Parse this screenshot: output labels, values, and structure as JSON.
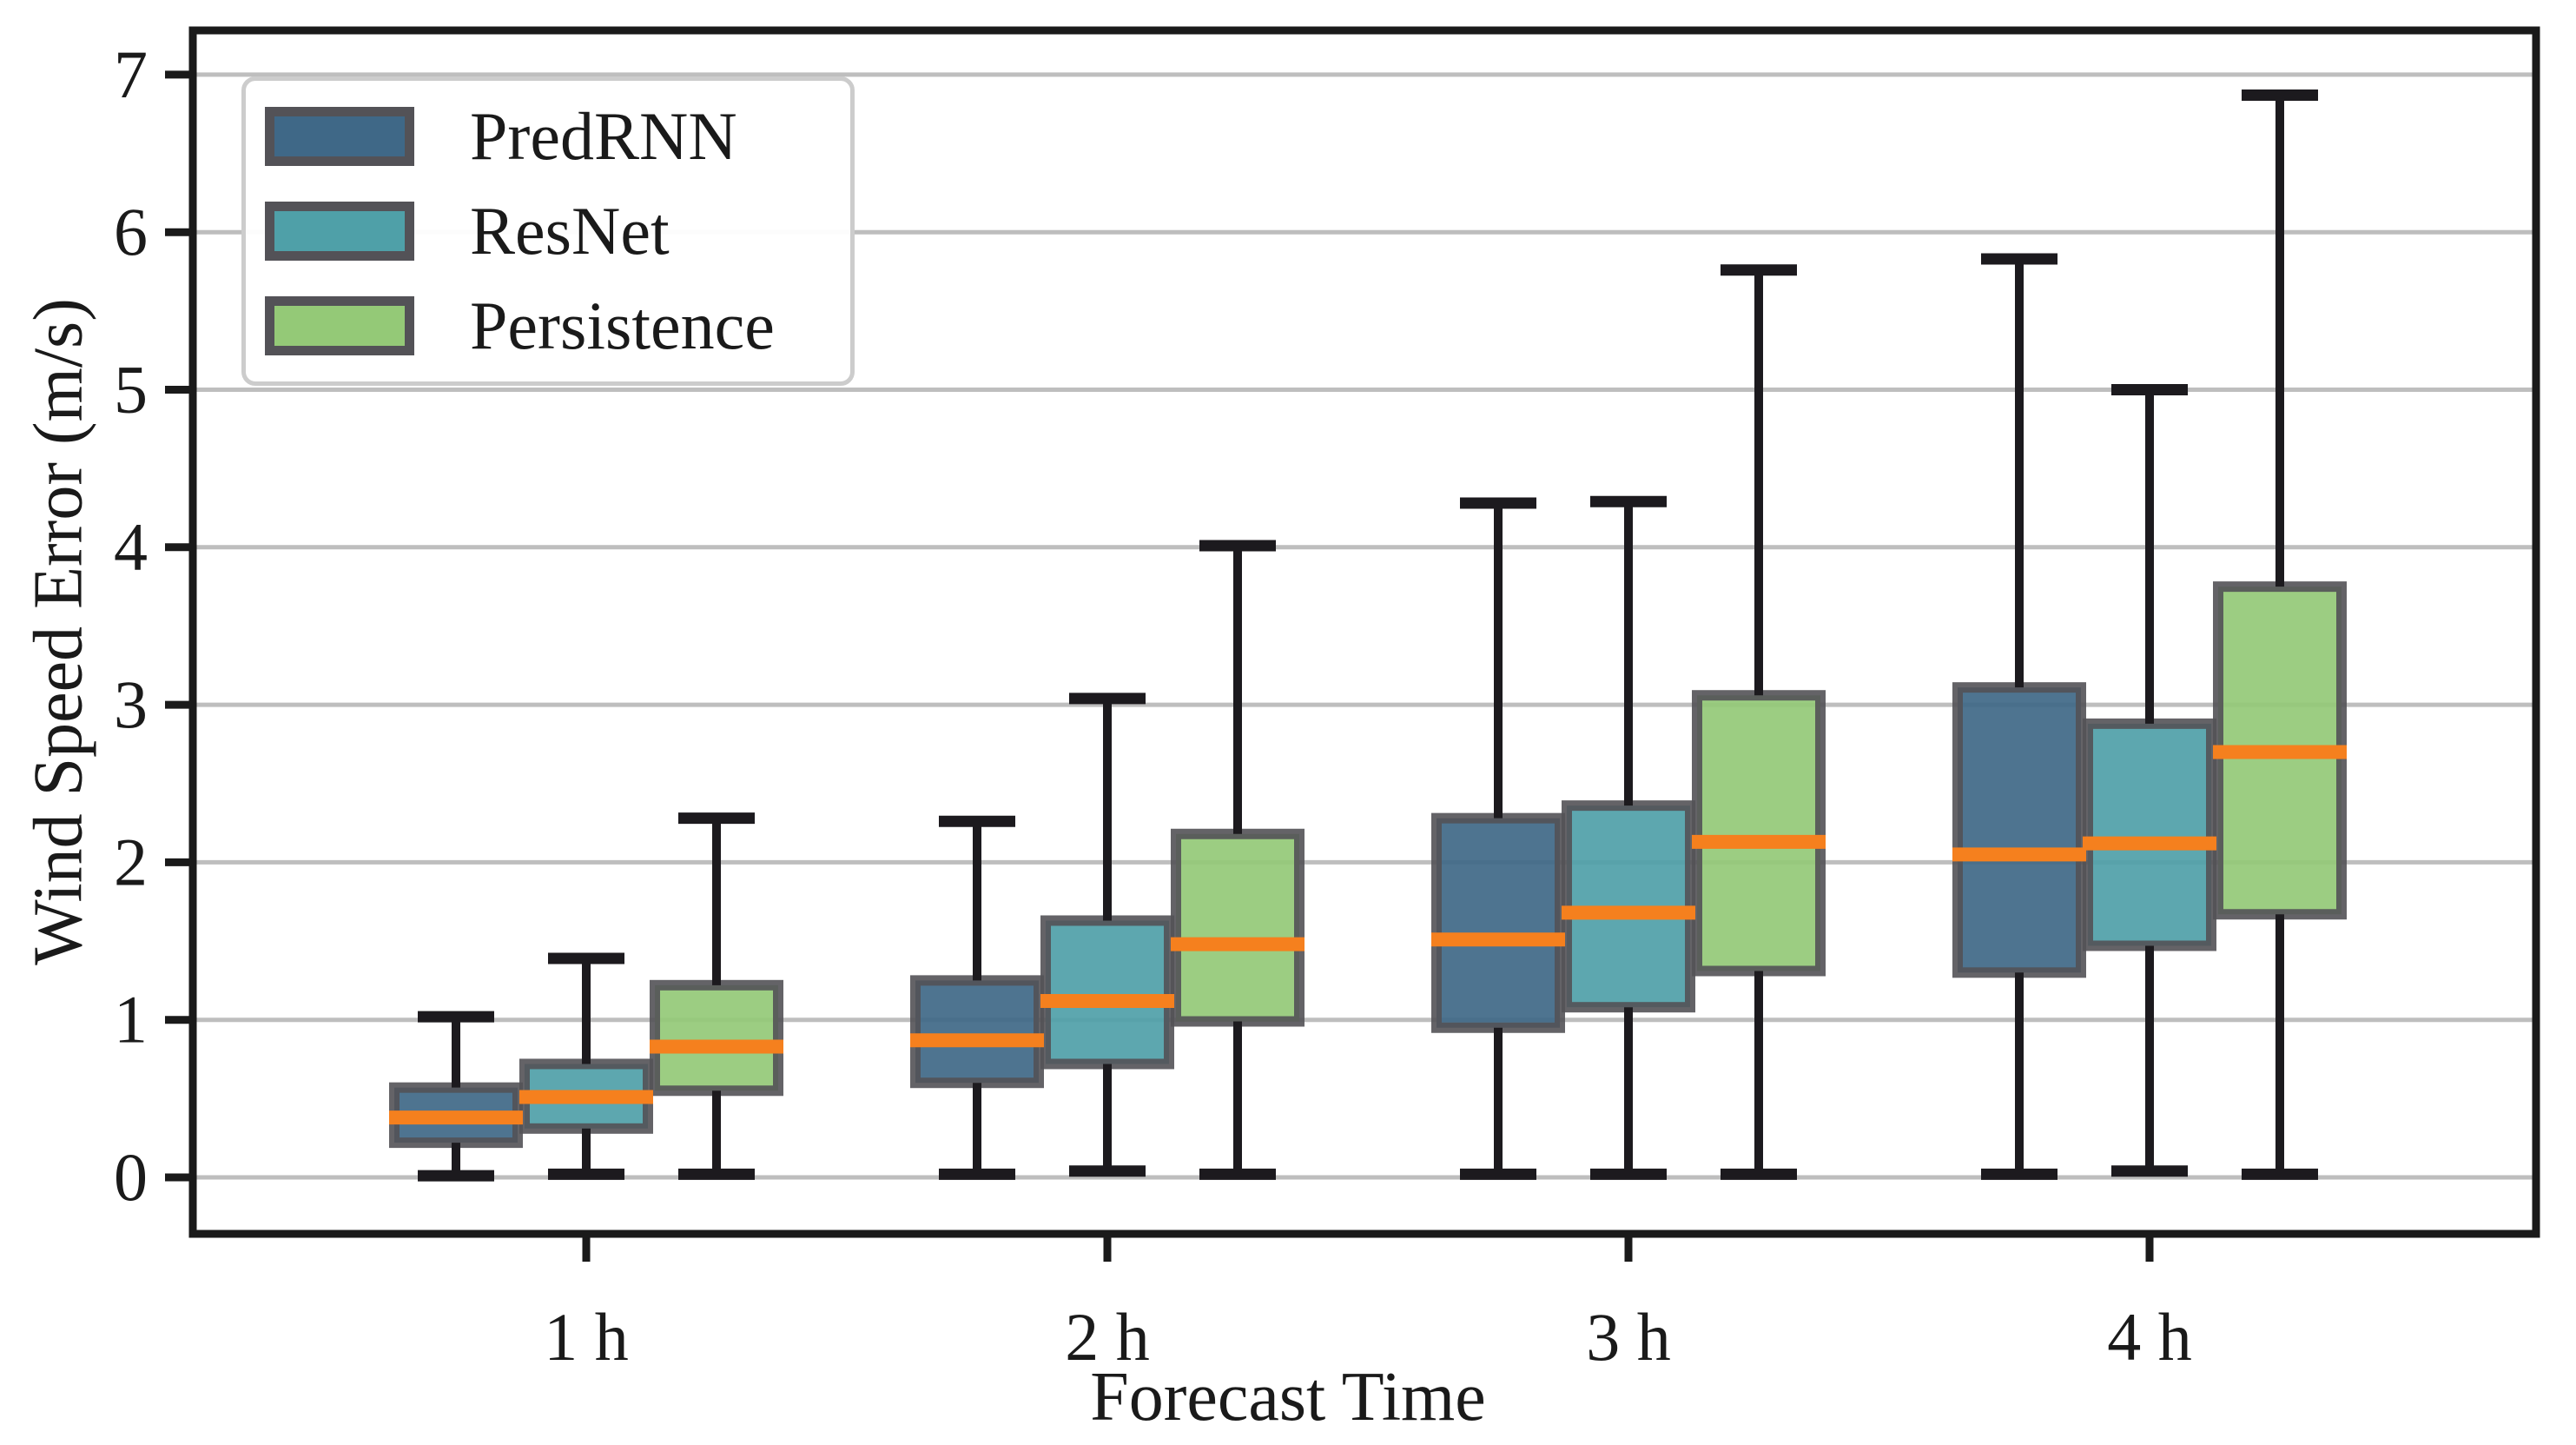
{
  "chart_data": {
    "type": "boxplot",
    "title": "",
    "xlabel": "Forecast Time",
    "ylabel": "Wind Speed Error (m/s)",
    "categories": [
      "1 h",
      "2 h",
      "3 h",
      "4 h"
    ],
    "yticks": [
      "0",
      "1",
      "2",
      "3",
      "4",
      "5",
      "6",
      "7"
    ],
    "ylim": [
      -0.36,
      7.28
    ],
    "grid": "horizontal",
    "legend": {
      "position": "upper-left",
      "entries": [
        "PredRNN",
        "ResNet",
        "Persistence"
      ]
    },
    "colors": {
      "median": "#F5801E",
      "box_edge": "#535257",
      "whisker": "#1C1A1E",
      "grid": "#BEBEBE",
      "spine": "#1A1A1A",
      "background": "#FFFFFF"
    },
    "series": [
      {
        "name": "PredRNN",
        "color": "#3F6887",
        "boxes": [
          {
            "whislo": 0.01,
            "q1": 0.22,
            "med": 0.38,
            "q3": 0.57,
            "whishi": 1.02
          },
          {
            "whislo": 0.02,
            "q1": 0.6,
            "med": 0.87,
            "q3": 1.25,
            "whishi": 2.26
          },
          {
            "whislo": 0.02,
            "q1": 0.95,
            "med": 1.51,
            "q3": 2.28,
            "whishi": 4.28
          },
          {
            "whislo": 0.02,
            "q1": 1.3,
            "med": 2.05,
            "q3": 3.11,
            "whishi": 5.83
          }
        ]
      },
      {
        "name": "ResNet",
        "color": "#4FA0A8",
        "boxes": [
          {
            "whislo": 0.02,
            "q1": 0.31,
            "med": 0.51,
            "q3": 0.72,
            "whishi": 1.39
          },
          {
            "whislo": 0.04,
            "q1": 0.72,
            "med": 1.12,
            "q3": 1.63,
            "whishi": 3.04
          },
          {
            "whislo": 0.02,
            "q1": 1.08,
            "med": 1.68,
            "q3": 2.36,
            "whishi": 4.29
          },
          {
            "whislo": 0.04,
            "q1": 1.47,
            "med": 2.12,
            "q3": 2.88,
            "whishi": 5.0
          }
        ]
      },
      {
        "name": "Persistence",
        "color": "#94C977",
        "boxes": [
          {
            "whislo": 0.02,
            "q1": 0.55,
            "med": 0.83,
            "q3": 1.22,
            "whishi": 2.28
          },
          {
            "whislo": 0.02,
            "q1": 0.99,
            "med": 1.48,
            "q3": 2.18,
            "whishi": 4.01
          },
          {
            "whislo": 0.02,
            "q1": 1.31,
            "med": 2.13,
            "q3": 3.06,
            "whishi": 5.76
          },
          {
            "whislo": 0.02,
            "q1": 1.67,
            "med": 2.7,
            "q3": 3.75,
            "whishi": 6.87
          }
        ]
      }
    ]
  }
}
